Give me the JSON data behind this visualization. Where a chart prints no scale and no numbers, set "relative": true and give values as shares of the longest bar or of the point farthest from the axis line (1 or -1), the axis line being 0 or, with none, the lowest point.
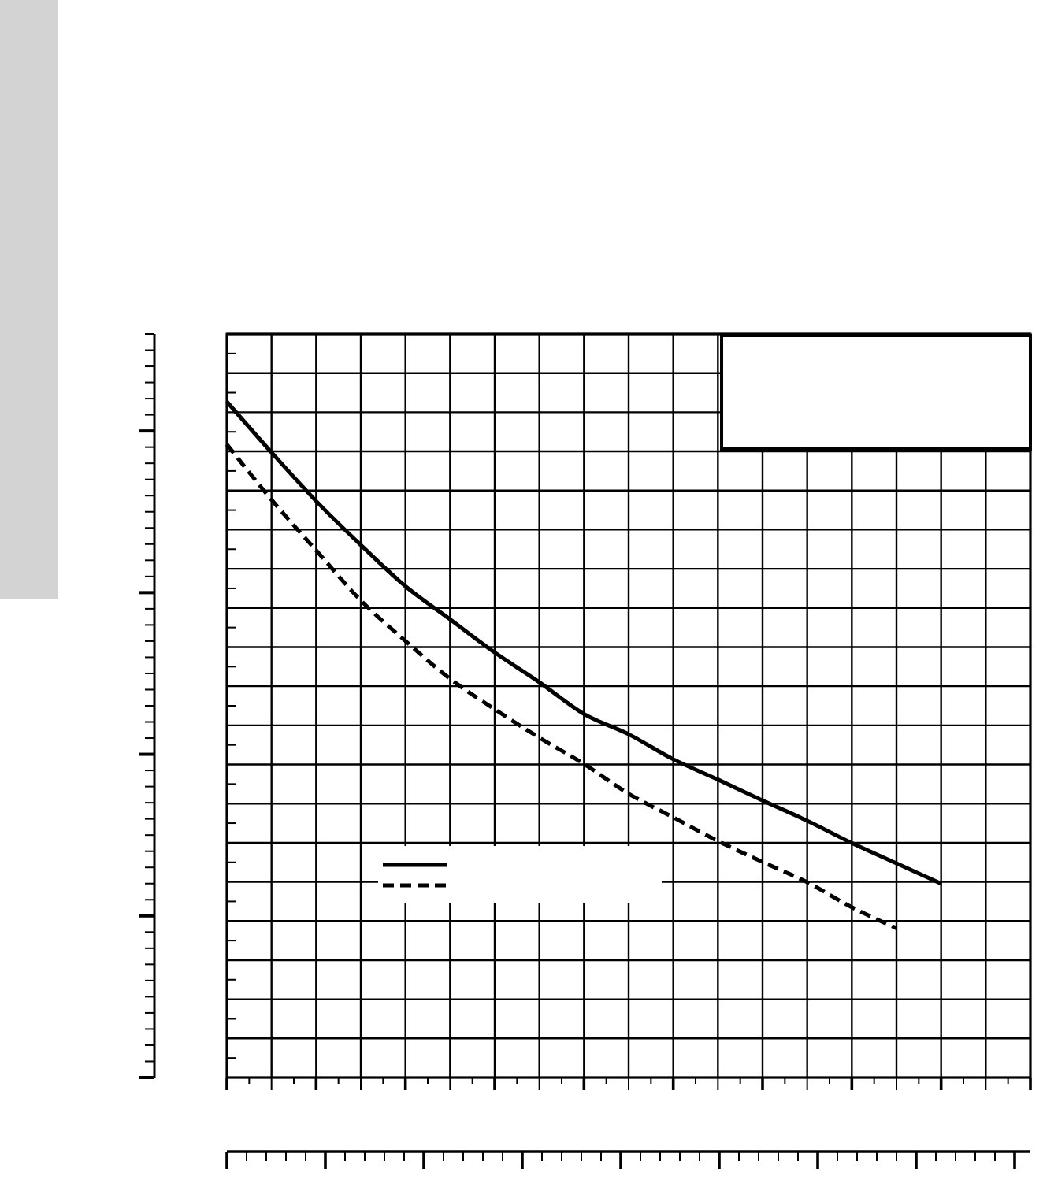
{
  "chart_data": {
    "type": "line",
    "relative": true,
    "categories": [
      null,
      null,
      null,
      null,
      null,
      null,
      null,
      null,
      null,
      null,
      null,
      null,
      null,
      null,
      null,
      null,
      null,
      null,
      null
    ],
    "series": [
      {
        "color": "#000000",
        "line_style": "solid",
        "values": [
          1,
          0.925,
          0.853,
          0.788,
          0.727,
          0.678,
          0.629,
          0.585,
          0.538,
          0.508,
          0.471,
          0.441,
          0.41,
          0.38,
          0.347,
          0.317,
          0.287,
          null,
          null
        ]
      },
      {
        "color": "#000000",
        "line_style": "dashed",
        "values": [
          0.937,
          0.855,
          0.78,
          0.706,
          0.646,
          0.59,
          0.545,
          0.503,
          0.464,
          0.42,
          0.385,
          0.35,
          0.319,
          0.289,
          0.252,
          0.221,
          null,
          null,
          null
        ]
      }
    ],
    "grid": true,
    "marker": "none"
  }
}
